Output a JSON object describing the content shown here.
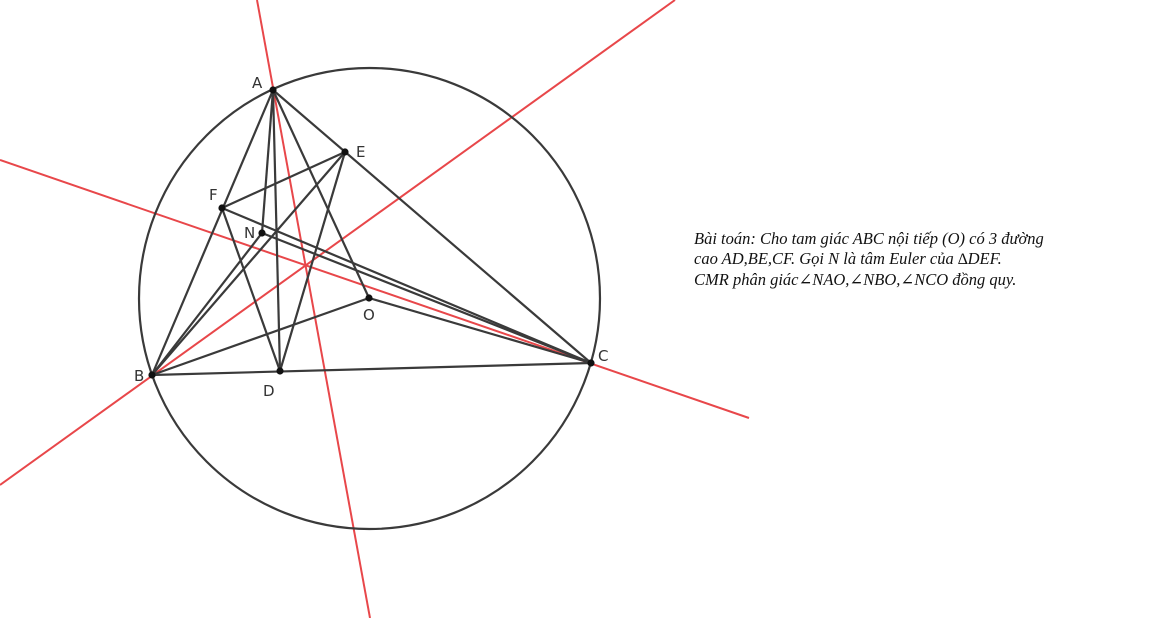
{
  "points": {
    "A": {
      "label": "A"
    },
    "B": {
      "label": "B"
    },
    "C": {
      "label": "C"
    },
    "D": {
      "label": "D"
    },
    "E": {
      "label": "E"
    },
    "F": {
      "label": "F"
    },
    "N": {
      "label": "N"
    },
    "O": {
      "label": "O"
    }
  },
  "colors": {
    "black_line": "#3a3a3a",
    "red_line": "#e8474a",
    "point": "#111111"
  },
  "problem": {
    "line1": "Bài toán: Cho tam giác ABC nội tiếp (O) có 3 đường",
    "line2_a": "cao AD,BE,CF. Gọi N là tâm Euler của ",
    "line2_tri": "∆",
    "line2_b": "DEF.",
    "line3": "CMR phân giác∠NAO,∠NBO,∠NCO đồng quy."
  }
}
